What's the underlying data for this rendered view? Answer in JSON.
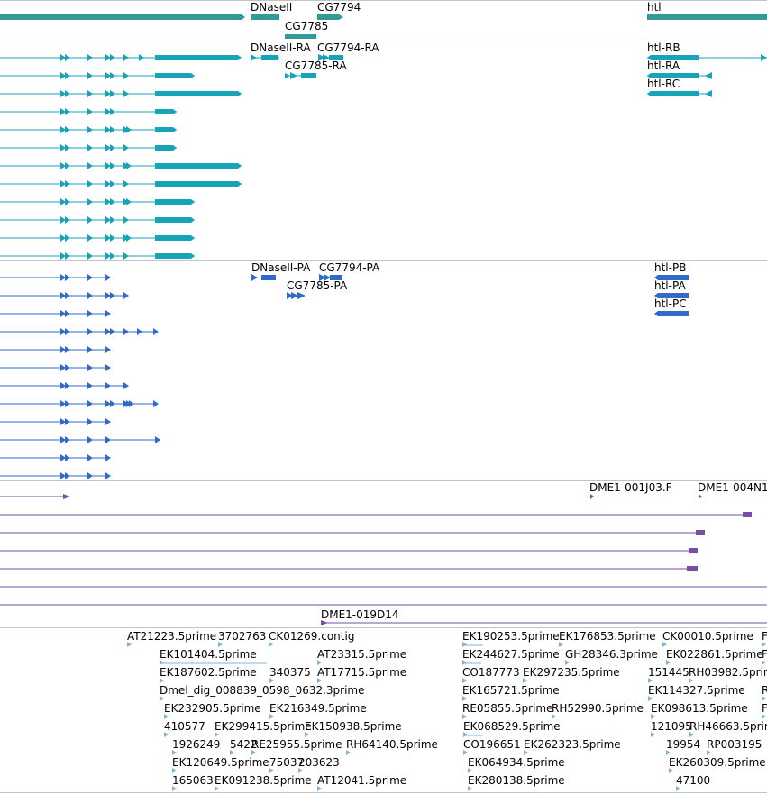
{
  "colors": {
    "gene": "#339a9a",
    "transcript": "#17a3b8",
    "protein": "#2f6bc7",
    "clone": "#7a4ea6",
    "est": "#7fb4de",
    "separator": "#c4c4c4"
  },
  "icons": {
    "feature_arrow": "feature-arrow-icon"
  },
  "tracks": {
    "genes": {
      "labels": [
        "DNaseII",
        "CG7794",
        "CG7785",
        "htl"
      ]
    },
    "transcripts": {
      "labels": [
        "DNaseII-RA",
        "CG7794-RA",
        "CG7785-RA",
        "htl-RB",
        "htl-RA",
        "htl-RC"
      ]
    },
    "proteins": {
      "labels": [
        "DNaseII-PA",
        "CG7794-PA",
        "CG7785-PA",
        "htl-PB",
        "htl-PA",
        "htl-PC"
      ]
    },
    "clones": {
      "labels": [
        "DME1-001J03.F",
        "DME1-004N1",
        "DME1-019D14"
      ]
    },
    "ests": {
      "labels": [
        "AT21223.5prime",
        "3702763",
        "CK01269.contig",
        "EK101404.5prime",
        "AT23315.5prime",
        "EK187602.5prime",
        "340375",
        "AT17715.5prime",
        "Dmel_dig_008839_0598_0632.3prime",
        "EK232905.5prime",
        "EK216349.5prime",
        "410577",
        "EK299415.5prime",
        "EK150938.5prime",
        "1926249",
        "5422",
        "RE25955.5prime",
        "RH64140.5prime",
        "EK120649.5prime",
        "75037",
        "203623",
        "165063",
        "EK091238.5prime",
        "AT12041.5prime",
        "EK190253.5prime",
        "EK176853.5prime",
        "EK244627.5prime",
        "GH28346.3prime",
        "CO187773",
        "EK297235.5prime",
        "EK165721.5prime",
        "RE05855.5prime",
        "RH52990.5prime",
        "EK068529.5prime",
        "CO196651",
        "EK262323.5prime",
        "EK064934.5prime",
        "EK280138.5prime",
        "CK00010.5prime",
        "F",
        "EK022861.5prime",
        "F",
        "151445",
        "RH03982.5prime",
        "EK114327.5prime",
        "R",
        "EK098613.5prime",
        "F",
        "121095",
        "RH46663.5prime",
        "19954",
        "RP003195",
        "EK260309.5prime",
        "47100"
      ]
    }
  }
}
